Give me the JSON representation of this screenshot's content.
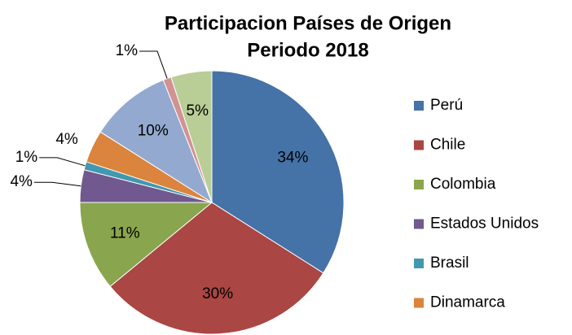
{
  "chart_data": {
    "type": "pie",
    "title": [
      "Participacion Países de Origen",
      "Periodo 2018"
    ],
    "categories": [
      "Perú",
      "Chile",
      "Colombia",
      "Estados Unidos",
      "Brasil",
      "Dinamarca",
      null,
      null,
      null
    ],
    "values": [
      34,
      30,
      11,
      4,
      1,
      4,
      10,
      1,
      5
    ],
    "value_labels": [
      "34%",
      "30%",
      "11%",
      "4%",
      "1%",
      "4%",
      "10%",
      "1%",
      "5%"
    ],
    "colors": [
      "#4572a7",
      "#aa4643",
      "#89a54e",
      "#71588f",
      "#4198af",
      "#db843d",
      "#93a9cf",
      "#d19392",
      "#b9cd96"
    ],
    "legend": "right"
  }
}
